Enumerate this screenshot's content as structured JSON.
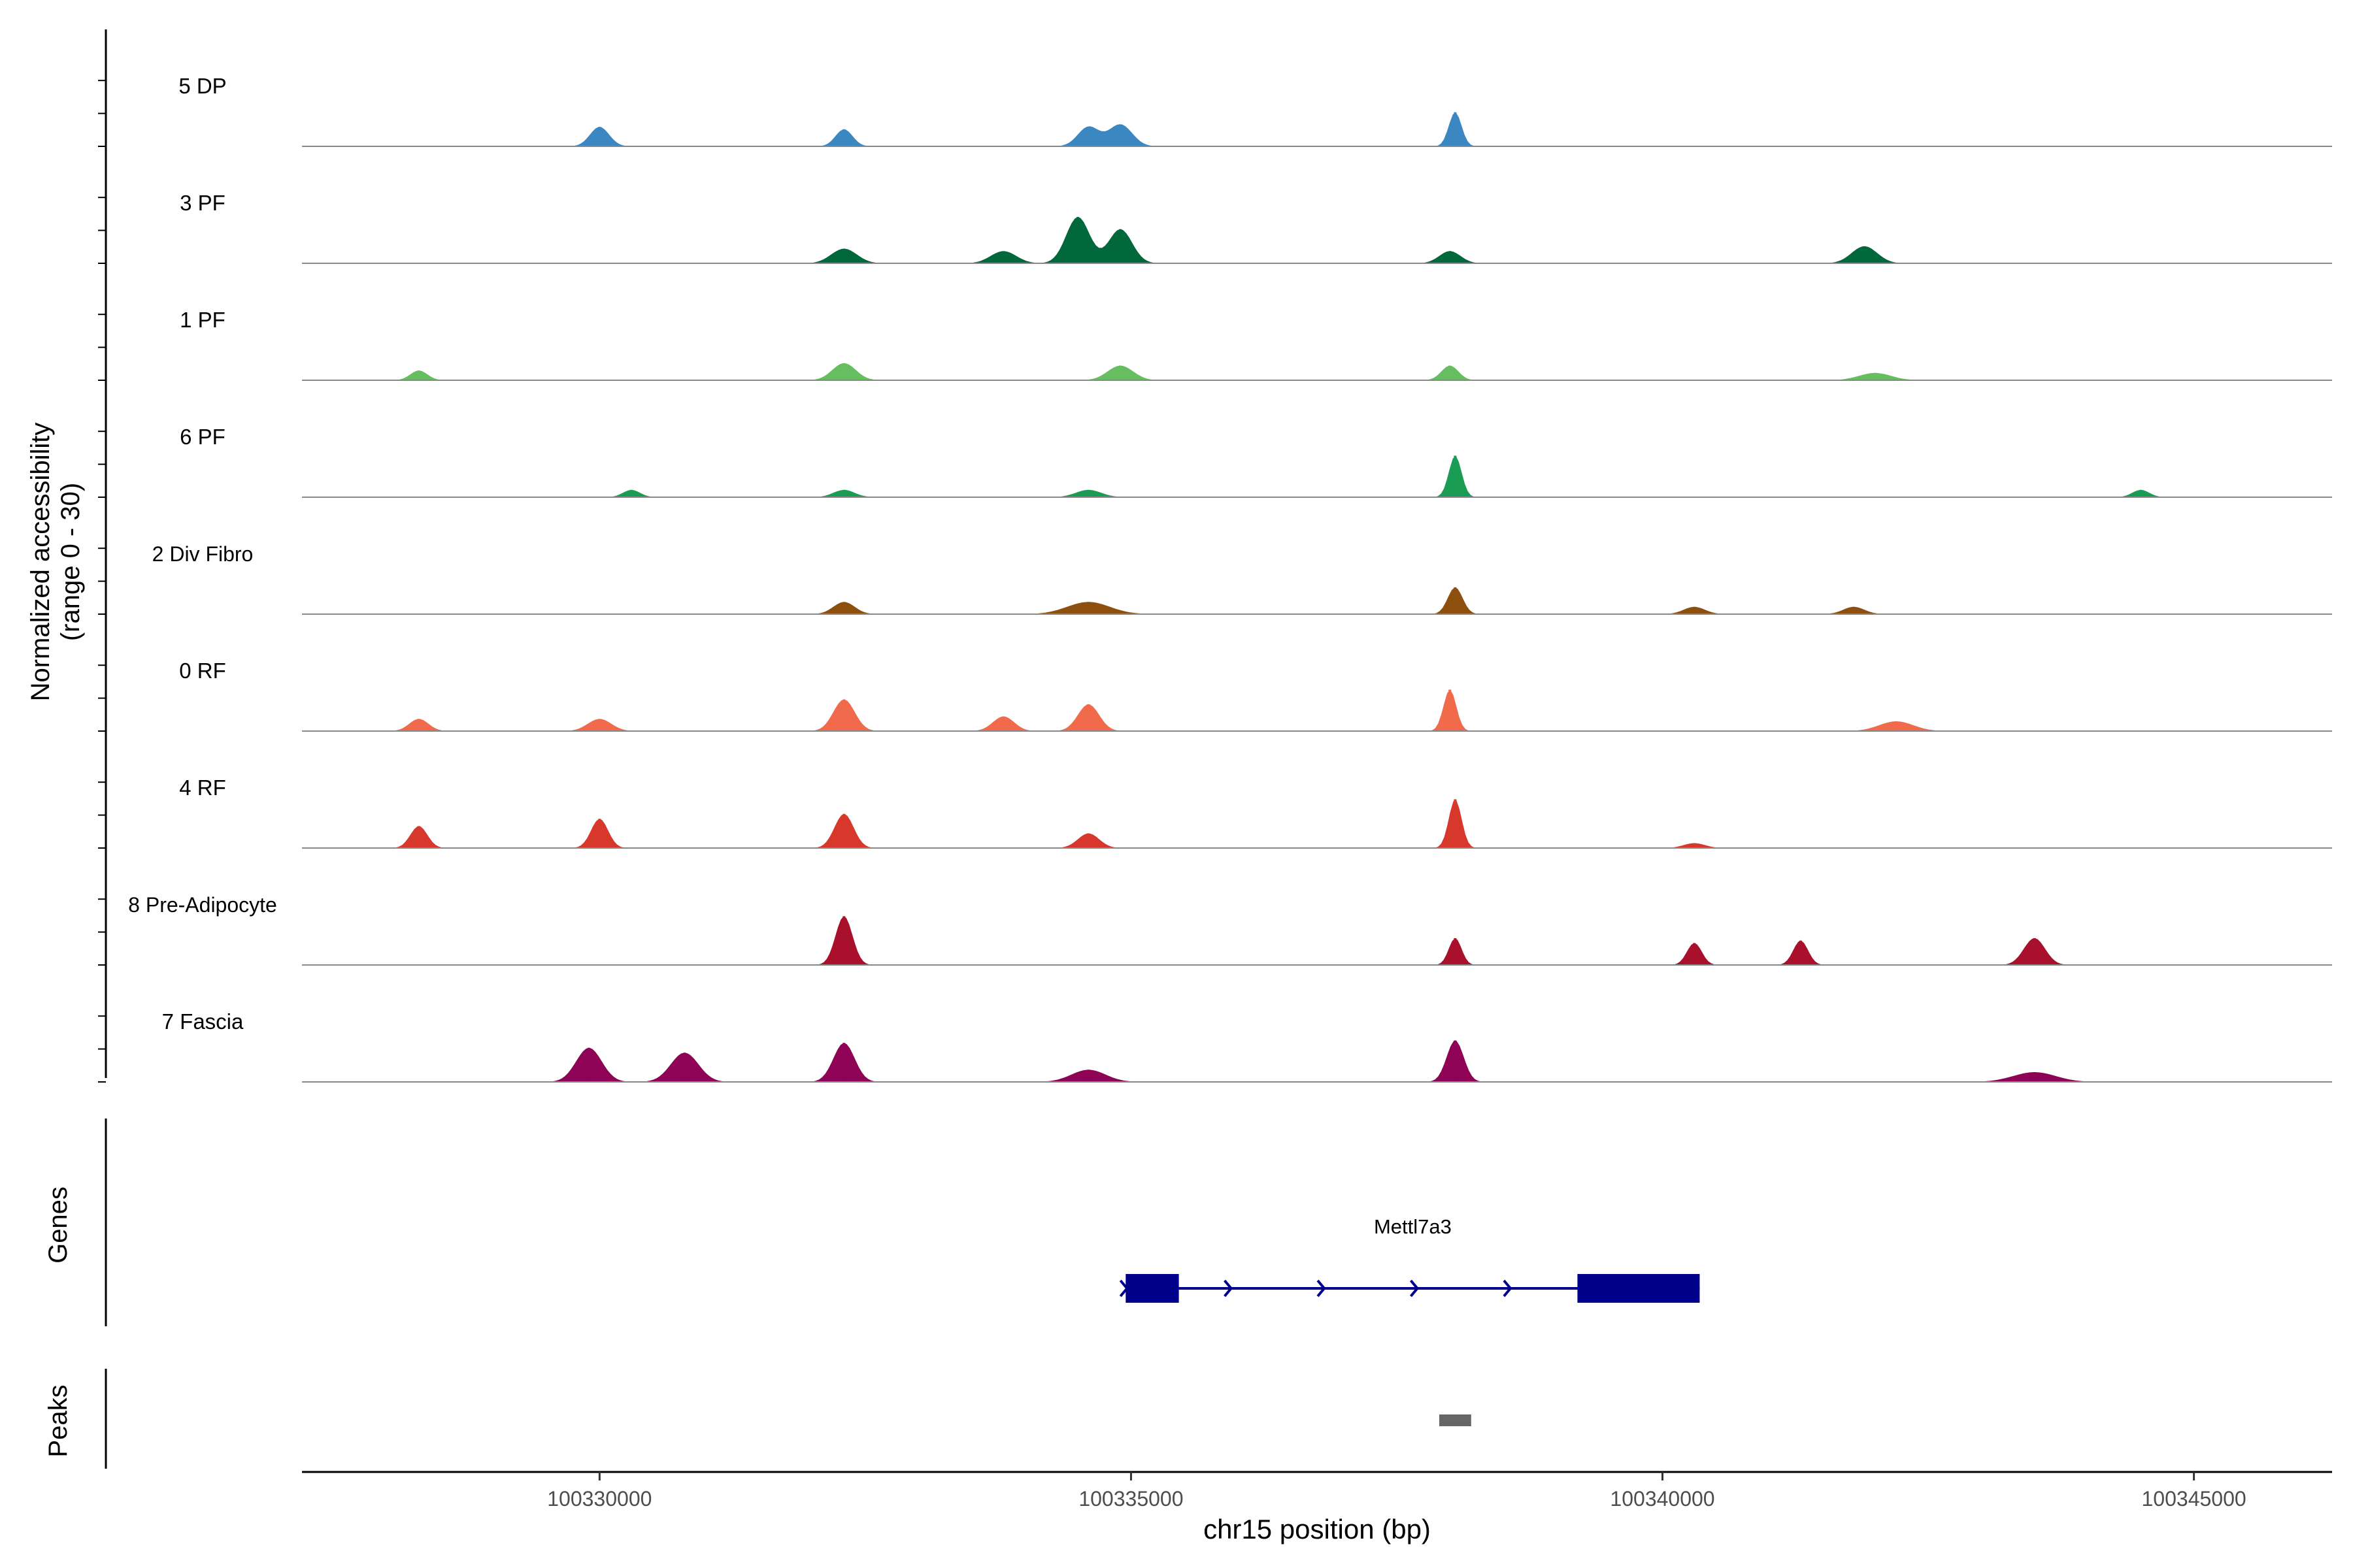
{
  "chart_data": {
    "type": "area",
    "xlabel": "chr15 position (bp)",
    "ylabel_line1": "Normalized accessibility",
    "ylabel_line2": "(range 0 - 30)",
    "ylim": [
      0,
      30
    ],
    "xlim": [
      100327200,
      100346300
    ],
    "x_ticks": [
      {
        "value": 100330000,
        "label": "100330000"
      },
      {
        "value": 100335000,
        "label": "100335000"
      },
      {
        "value": 100340000,
        "label": "100340000"
      },
      {
        "value": 100345000,
        "label": "100345000"
      }
    ],
    "tracks": [
      {
        "name": "5 DP",
        "color": "#3A87C1",
        "segment": [
          100328200,
          100345000
        ],
        "peaks": [
          [
            100330000,
            8,
            90
          ],
          [
            100332300,
            7,
            80
          ],
          [
            100334600,
            8,
            100
          ],
          [
            100334900,
            9,
            110
          ],
          [
            100338050,
            14,
            60
          ]
        ]
      },
      {
        "name": "3 PF",
        "color": "#00683A",
        "segment": [
          100328000,
          100345100
        ],
        "peaks": [
          [
            100332300,
            6,
            120
          ],
          [
            100333800,
            5,
            120
          ],
          [
            100334500,
            19,
            110
          ],
          [
            100334900,
            14,
            110
          ],
          [
            100338000,
            5,
            100
          ],
          [
            100341900,
            7,
            120
          ]
        ]
      },
      {
        "name": "1 PF",
        "color": "#66BE61",
        "segment": [
          100327900,
          100345100
        ],
        "peaks": [
          [
            100328300,
            4,
            80
          ],
          [
            100332300,
            7,
            110
          ],
          [
            100334900,
            6,
            120
          ],
          [
            100338000,
            6,
            80
          ],
          [
            100342000,
            3,
            150
          ]
        ]
      },
      {
        "name": "6 PF",
        "color": "#1B9C55",
        "segment": [
          100328200,
          100345000
        ],
        "peaks": [
          [
            100330300,
            3,
            80
          ],
          [
            100332300,
            3,
            100
          ],
          [
            100334600,
            3,
            120
          ],
          [
            100338050,
            17,
            60
          ],
          [
            100344500,
            3,
            80
          ]
        ]
      },
      {
        "name": "2 Div Fibro",
        "color": "#8D4F0E",
        "segment": [
          100328100,
          100345100
        ],
        "peaks": [
          [
            100332300,
            5,
            100
          ],
          [
            100334600,
            5,
            200
          ],
          [
            100338050,
            11,
            70
          ],
          [
            100340300,
            3,
            100
          ],
          [
            100341800,
            3,
            100
          ]
        ]
      },
      {
        "name": "0 RF",
        "color": "#F06A4B",
        "segment": [
          100328000,
          100345100
        ],
        "peaks": [
          [
            100328300,
            5,
            90
          ],
          [
            100330000,
            5,
            110
          ],
          [
            100332300,
            13,
            100
          ],
          [
            100333800,
            6,
            100
          ],
          [
            100334600,
            11,
            100
          ],
          [
            100338000,
            17,
            60
          ],
          [
            100342200,
            4,
            160
          ]
        ]
      },
      {
        "name": "4 RF",
        "color": "#D8382B",
        "segment": [
          100328000,
          100345100
        ],
        "peaks": [
          [
            100328300,
            9,
            80
          ],
          [
            100330000,
            12,
            80
          ],
          [
            100332300,
            14,
            90
          ],
          [
            100334600,
            6,
            100
          ],
          [
            100338050,
            20,
            60
          ],
          [
            100340300,
            2,
            100
          ]
        ]
      },
      {
        "name": "8 Pre-Adipocyte",
        "color": "#A8102C",
        "segment": [
          100328400,
          100344300
        ],
        "peaks": [
          [
            100332300,
            20,
            80
          ],
          [
            100338050,
            11,
            60
          ],
          [
            100340300,
            9,
            70
          ],
          [
            100341300,
            10,
            70
          ],
          [
            100343500,
            11,
            100
          ]
        ]
      },
      {
        "name": "7 Fascia",
        "color": "#8E0356",
        "segment": [
          100328000,
          100345300
        ],
        "peaks": [
          [
            100329900,
            14,
            120
          ],
          [
            100330800,
            12,
            130
          ],
          [
            100332300,
            16,
            100
          ],
          [
            100334600,
            5,
            160
          ],
          [
            100338050,
            17,
            80
          ],
          [
            100343500,
            4,
            200
          ]
        ]
      }
    ],
    "genes_label": "Genes",
    "gene": {
      "name": "Mettl7a3",
      "start": 100334950,
      "end": 100340350,
      "strand": "+",
      "exons": [
        [
          100334950,
          100335450
        ],
        [
          100339200,
          100340350
        ]
      ],
      "color": "#00008B"
    },
    "peaks_label": "Peaks",
    "peak_regions": [
      {
        "start": 100337900,
        "end": 100338200,
        "color": "#666666"
      }
    ]
  }
}
